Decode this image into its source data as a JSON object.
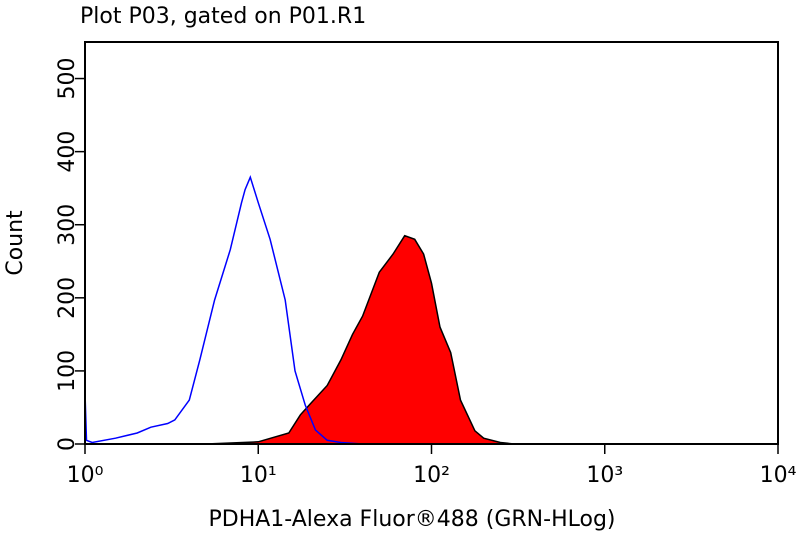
{
  "chart_data": {
    "type": "histogram-overlay",
    "title": "Plot P03, gated on P01.R1",
    "xlabel": "PDHA1-Alexa Fluor®488 (GRN-HLog)",
    "ylabel": "Count",
    "xscale": "log",
    "xlim": [
      1,
      10000
    ],
    "xticks": [
      {
        "value": 1,
        "label": "10⁰"
      },
      {
        "value": 10,
        "label": "10¹"
      },
      {
        "value": 100,
        "label": "10²"
      },
      {
        "value": 1000,
        "label": "10³"
      },
      {
        "value": 10000,
        "label": "10⁴"
      }
    ],
    "ylim": [
      0,
      550
    ],
    "yticks": [
      0,
      100,
      200,
      300,
      400,
      500
    ],
    "series": [
      {
        "color": "#0000ff",
        "fill": "none",
        "x": [
          1,
          1.02,
          1.1,
          1.5,
          2,
          2.4,
          3,
          3.3,
          4,
          4.6,
          5.6,
          6.9,
          8,
          8.4,
          9,
          10,
          11.7,
          14.3,
          16.3,
          18.7,
          21.4,
          25,
          30,
          40
        ],
        "values": [
          70,
          5,
          2,
          8,
          15,
          23,
          28,
          33,
          60,
          115,
          197,
          266,
          330,
          348,
          365,
          330,
          280,
          197,
          100,
          53,
          19,
          5,
          2,
          0
        ]
      },
      {
        "color": "#ff0000",
        "outline": "#000000",
        "fill": "#ff0000",
        "x": [
          5,
          10,
          15,
          17.5,
          20,
          25,
          30,
          35,
          40,
          50,
          60,
          70,
          80,
          90,
          100,
          112,
          129,
          147,
          178,
          200,
          250,
          300,
          500
        ],
        "values": [
          0,
          3,
          15,
          40,
          55,
          80,
          115,
          150,
          175,
          235,
          260,
          285,
          280,
          260,
          220,
          160,
          125,
          60,
          18,
          8,
          2,
          0,
          0
        ]
      }
    ]
  }
}
